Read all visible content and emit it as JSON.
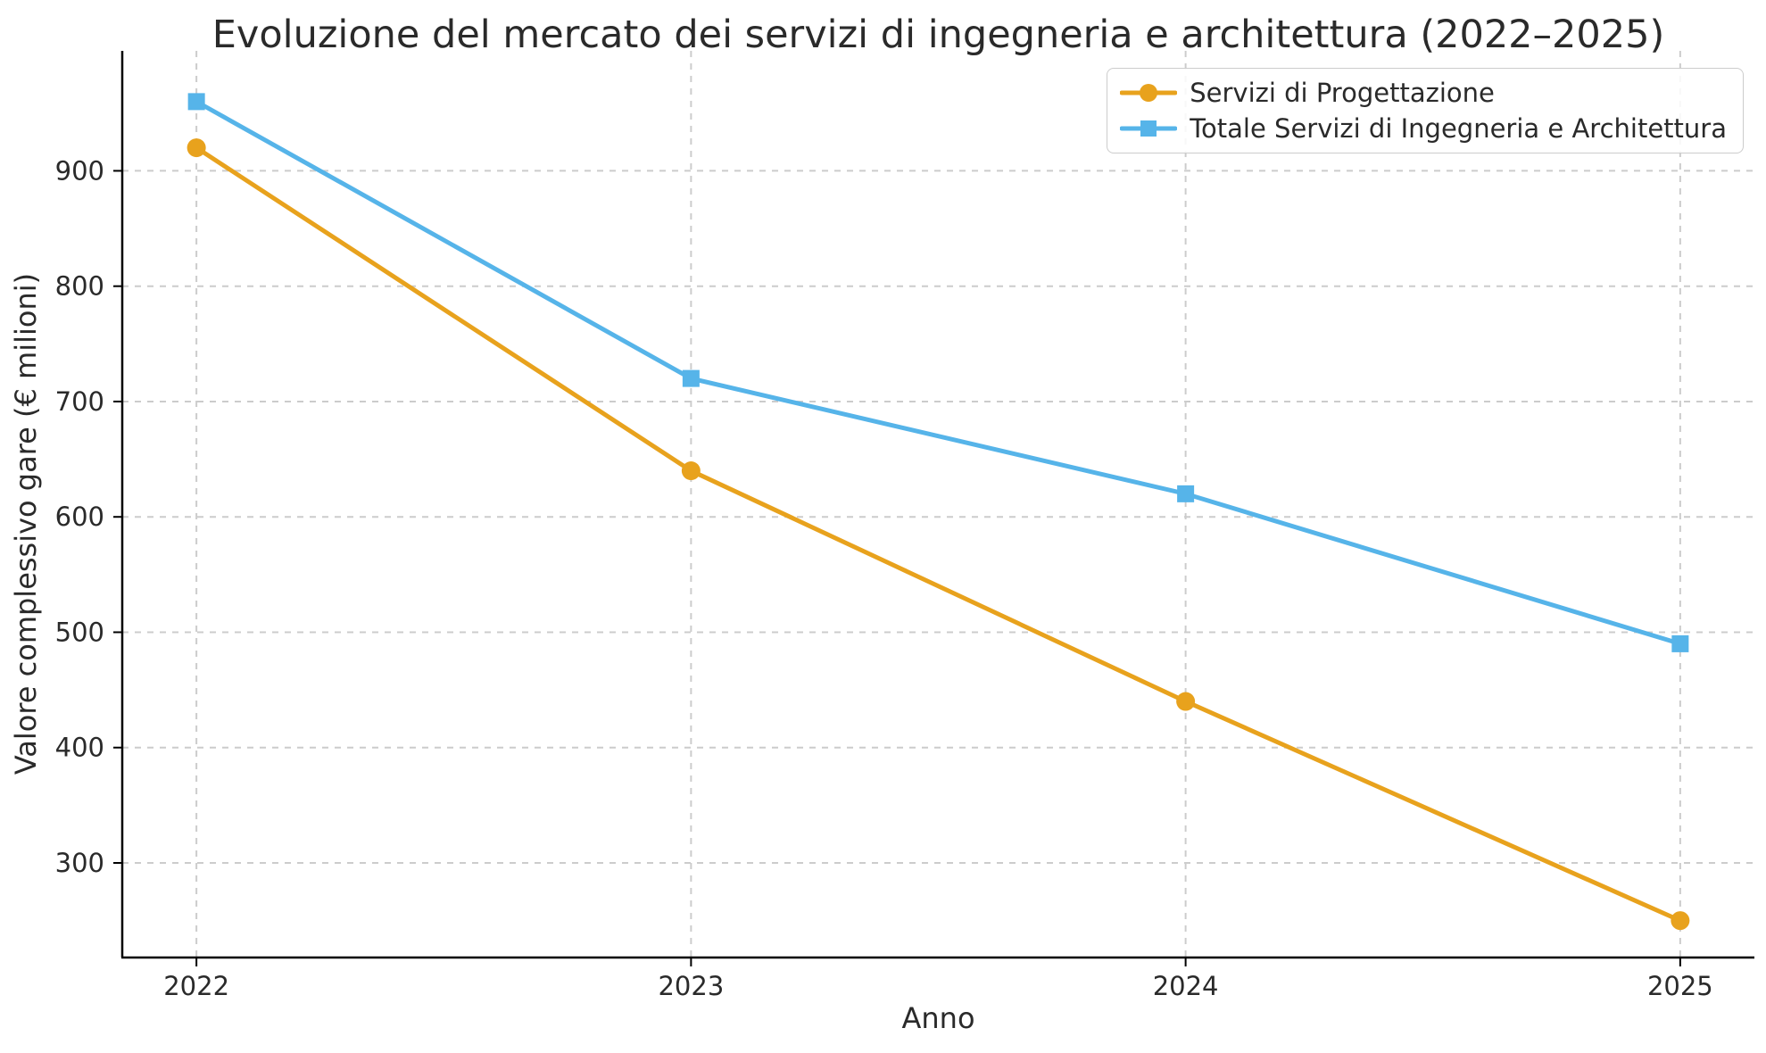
{
  "figure": {
    "background": "#ffffff",
    "text_color": "#2a2a2a",
    "axis_color": "#000000",
    "grid_color": "#cccccc"
  },
  "chart_data": {
    "type": "line",
    "title": "Evoluzione del mercato dei servizi di ingegneria e architettura (2022–2025)",
    "xlabel": "Anno",
    "ylabel": "Valore complessivo gare (€ milioni)",
    "categories": [
      "2022",
      "2023",
      "2024",
      "2025"
    ],
    "x": [
      2022,
      2023,
      2024,
      2025
    ],
    "series": [
      {
        "name": "Servizi di Progettazione",
        "values": [
          920,
          640,
          440,
          250
        ],
        "color": "#E8A21D",
        "marker": "circle"
      },
      {
        "name": "Totale Servizi di Ingegneria e Architettura",
        "values": [
          960,
          720,
          620,
          490
        ],
        "color": "#56B4E9",
        "marker": "square"
      }
    ],
    "yticks": [
      300,
      400,
      500,
      600,
      700,
      800,
      900
    ],
    "ylim": [
      218,
      1004
    ],
    "xlim": [
      2021.85,
      2025.15
    ],
    "grid": {
      "show": true,
      "dashed": true
    },
    "legend_position": "upper right"
  }
}
